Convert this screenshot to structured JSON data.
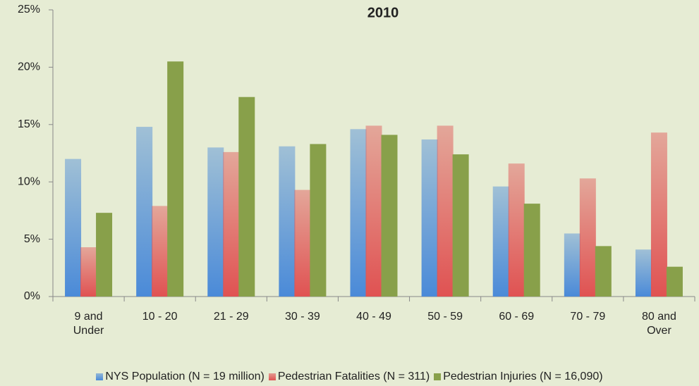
{
  "chart_data": {
    "type": "bar",
    "title": "2010",
    "categories": [
      "9 and Under",
      "10 - 20",
      "21 - 29",
      "30 - 39",
      "40 - 49",
      "50 - 59",
      "60 - 69",
      "70 - 79",
      "80 and Over"
    ],
    "series": [
      {
        "name": "NYS Population (N = 19 million)",
        "color": "#4a8ad8",
        "gradient": true,
        "values": [
          12.0,
          14.8,
          13.0,
          13.1,
          14.6,
          13.7,
          9.6,
          5.5,
          4.1
        ]
      },
      {
        "name": "Pedestrian Fatalities (N = 311)",
        "color": "#e05252",
        "gradient": true,
        "values": [
          4.3,
          7.9,
          12.6,
          9.3,
          14.9,
          14.9,
          11.6,
          10.3,
          14.3
        ]
      },
      {
        "name": "Pedestrian Injuries (N = 16,090)",
        "color": "#88a04a",
        "gradient": false,
        "values": [
          7.3,
          20.5,
          17.4,
          13.3,
          14.1,
          12.4,
          8.1,
          4.4,
          2.6
        ]
      }
    ],
    "ylim": [
      0,
      25
    ],
    "yticks": [
      {
        "value": 0,
        "label": "0%"
      },
      {
        "value": 5,
        "label": "5%"
      },
      {
        "value": 10,
        "label": "10%"
      },
      {
        "value": 15,
        "label": "15%"
      },
      {
        "value": 20,
        "label": "20%"
      },
      {
        "value": 25,
        "label": "25%"
      }
    ],
    "grid": false,
    "legend": "bottom"
  }
}
